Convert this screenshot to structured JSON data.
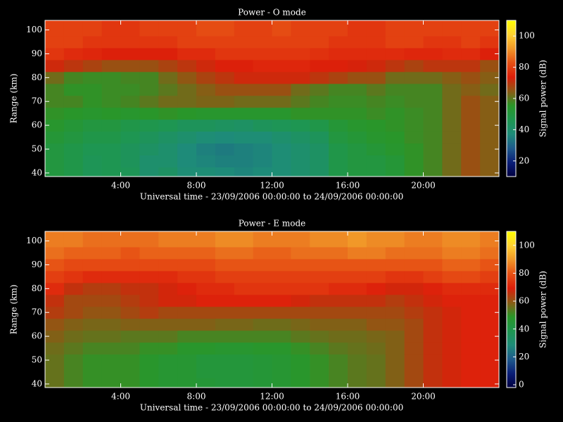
{
  "chart_data": [
    {
      "type": "heatmap",
      "title": "Power - O mode",
      "xlabel": "Universal time - 23/09/2006 00:00:00 to 24/09/2006 00:00:00",
      "ylabel": "Range (km)",
      "colorbar_label": "Signal power (dB)",
      "xlim": [
        0,
        24
      ],
      "ylim": [
        38.5,
        104
      ],
      "xticks": [
        {
          "value": 4,
          "label": "4:00"
        },
        {
          "value": 8,
          "label": "8:00"
        },
        {
          "value": 12,
          "label": "12:00"
        },
        {
          "value": 16,
          "label": "16:00"
        },
        {
          "value": 20,
          "label": "20:00"
        }
      ],
      "yticks": [
        40,
        50,
        60,
        70,
        80,
        90,
        100
      ],
      "clim": [
        10,
        110
      ],
      "cticks": [
        20,
        40,
        60,
        80,
        100
      ],
      "colormap": [
        "#000040",
        "#0a1e78",
        "#1e5a8c",
        "#1e8c78",
        "#1e9650",
        "#2a9628",
        "#8c5a14",
        "#dc1e0a",
        "#e65014",
        "#f09628",
        "#ffd232",
        "#ffff00"
      ],
      "x": [
        0.5,
        1.5,
        2.5,
        3.5,
        4.5,
        5.5,
        6.5,
        7.5,
        8.5,
        9.5,
        10.5,
        11.5,
        12.5,
        13.5,
        14.5,
        15.5,
        16.5,
        17.5,
        18.5,
        19.5,
        20.5,
        21.5,
        22.5,
        23.5
      ],
      "y": [
        40,
        45,
        50,
        55,
        60,
        65,
        70,
        75,
        80,
        85,
        90,
        95,
        100
      ],
      "values": [
        [
          50,
          48,
          45,
          46,
          45,
          40,
          42,
          38,
          38,
          37,
          36,
          37,
          38,
          40,
          42,
          48,
          50,
          50,
          52,
          56,
          58,
          62,
          66,
          64
        ],
        [
          50,
          48,
          45,
          46,
          44,
          40,
          40,
          37,
          36,
          35,
          35,
          36,
          38,
          40,
          42,
          48,
          50,
          50,
          52,
          56,
          58,
          62,
          66,
          64
        ],
        [
          50,
          48,
          46,
          46,
          44,
          42,
          40,
          37,
          35,
          34,
          35,
          36,
          38,
          40,
          42,
          48,
          50,
          52,
          54,
          56,
          58,
          62,
          66,
          64
        ],
        [
          52,
          50,
          48,
          48,
          46,
          44,
          42,
          40,
          38,
          37,
          38,
          38,
          40,
          42,
          44,
          50,
          52,
          54,
          55,
          57,
          58,
          62,
          66,
          64
        ],
        [
          54,
          52,
          50,
          50,
          48,
          47,
          46,
          44,
          44,
          43,
          42,
          44,
          45,
          46,
          48,
          52,
          54,
          55,
          56,
          57,
          58,
          62,
          66,
          64
        ],
        [
          56,
          55,
          54,
          55,
          54,
          55,
          56,
          55,
          54,
          54,
          54,
          54,
          54,
          56,
          56,
          56,
          56,
          57,
          56,
          57,
          58,
          62,
          66,
          64
        ],
        [
          58,
          58,
          56,
          57,
          58,
          60,
          62,
          62,
          63,
          63,
          62,
          62,
          62,
          60,
          58,
          57,
          57,
          58,
          57,
          58,
          58,
          62,
          66,
          64
        ],
        [
          58,
          56,
          56,
          57,
          57,
          58,
          60,
          62,
          64,
          66,
          66,
          66,
          66,
          62,
          60,
          58,
          58,
          60,
          58,
          58,
          58,
          62,
          64,
          62
        ],
        [
          62,
          58,
          57,
          57,
          58,
          58,
          62,
          65,
          68,
          70,
          72,
          72,
          72,
          72,
          70,
          68,
          66,
          66,
          62,
          62,
          62,
          64,
          66,
          64
        ],
        [
          72,
          70,
          68,
          66,
          66,
          66,
          68,
          70,
          72,
          74,
          74,
          75,
          75,
          75,
          74,
          74,
          73,
          72,
          70,
          68,
          70,
          70,
          70,
          66
        ],
        [
          78,
          76,
          75,
          74,
          74,
          74,
          74,
          76,
          76,
          78,
          78,
          78,
          78,
          78,
          77,
          76,
          76,
          76,
          76,
          75,
          75,
          76,
          76,
          74
        ],
        [
          80,
          80,
          78,
          78,
          78,
          78,
          78,
          80,
          80,
          80,
          80,
          80,
          80,
          80,
          80,
          78,
          78,
          78,
          80,
          80,
          78,
          78,
          80,
          78
        ],
        [
          80,
          80,
          80,
          78,
          78,
          80,
          80,
          80,
          82,
          82,
          80,
          80,
          82,
          80,
          80,
          80,
          78,
          78,
          80,
          80,
          80,
          80,
          80,
          80
        ]
      ]
    },
    {
      "type": "heatmap",
      "title": "Power - E mode",
      "xlabel": "Universal time - 23/09/2006 00:00:00 to 24/09/2006 00:00:00",
      "ylabel": "Range (km)",
      "colorbar_label": "Signal power (dB)",
      "xlim": [
        0,
        24
      ],
      "ylim": [
        38.5,
        104
      ],
      "xticks": [
        {
          "value": 4,
          "label": "4:00"
        },
        {
          "value": 8,
          "label": "8:00"
        },
        {
          "value": 12,
          "label": "12:00"
        },
        {
          "value": 16,
          "label": "16:00"
        },
        {
          "value": 20,
          "label": "20:00"
        }
      ],
      "yticks": [
        40,
        50,
        60,
        70,
        80,
        90,
        100
      ],
      "clim": [
        -2,
        110
      ],
      "cticks": [
        0,
        20,
        40,
        60,
        80,
        100
      ],
      "colormap": [
        "#000040",
        "#0a1e78",
        "#1e5a8c",
        "#1e8c78",
        "#1e9650",
        "#2a9628",
        "#8c5a14",
        "#dc1e0a",
        "#e65014",
        "#f09628",
        "#ffd232",
        "#ffff00"
      ],
      "x": [
        0.5,
        1.5,
        2.5,
        3.5,
        4.5,
        5.5,
        6.5,
        7.5,
        8.5,
        9.5,
        10.5,
        11.5,
        12.5,
        13.5,
        14.5,
        15.5,
        16.5,
        17.5,
        18.5,
        19.5,
        20.5,
        21.5,
        22.5,
        23.5
      ],
      "y": [
        40,
        45,
        50,
        55,
        60,
        65,
        70,
        75,
        80,
        85,
        90,
        95,
        100
      ],
      "values": [
        [
          55,
          52,
          50,
          50,
          50,
          48,
          46,
          46,
          45,
          44,
          44,
          45,
          46,
          48,
          50,
          52,
          54,
          55,
          58,
          62,
          66,
          68,
          70,
          70
        ],
        [
          55,
          52,
          50,
          50,
          50,
          48,
          46,
          46,
          44,
          44,
          44,
          45,
          46,
          48,
          50,
          52,
          54,
          55,
          58,
          62,
          66,
          68,
          70,
          70
        ],
        [
          55,
          52,
          50,
          50,
          50,
          48,
          46,
          46,
          44,
          44,
          44,
          45,
          46,
          48,
          50,
          52,
          54,
          55,
          58,
          62,
          66,
          68,
          70,
          70
        ],
        [
          56,
          54,
          52,
          52,
          52,
          50,
          50,
          48,
          48,
          47,
          47,
          48,
          48,
          50,
          52,
          54,
          55,
          56,
          58,
          62,
          66,
          68,
          70,
          70
        ],
        [
          58,
          56,
          55,
          55,
          54,
          54,
          54,
          52,
          52,
          52,
          52,
          52,
          52,
          54,
          55,
          56,
          56,
          57,
          58,
          62,
          66,
          68,
          70,
          70
        ],
        [
          60,
          58,
          57,
          57,
          58,
          58,
          58,
          58,
          58,
          57,
          57,
          56,
          56,
          57,
          58,
          58,
          58,
          60,
          60,
          62,
          66,
          68,
          70,
          70
        ],
        [
          64,
          62,
          60,
          60,
          62,
          64,
          62,
          62,
          62,
          62,
          62,
          62,
          62,
          62,
          62,
          62,
          62,
          62,
          62,
          64,
          66,
          68,
          70,
          70
        ],
        [
          66,
          62,
          62,
          62,
          64,
          66,
          68,
          68,
          70,
          70,
          70,
          70,
          70,
          68,
          66,
          66,
          66,
          66,
          64,
          66,
          68,
          70,
          70,
          70
        ],
        [
          72,
          66,
          64,
          64,
          66,
          66,
          68,
          70,
          72,
          72,
          74,
          74,
          74,
          74,
          74,
          72,
          72,
          70,
          68,
          68,
          70,
          72,
          72,
          72
        ],
        [
          76,
          74,
          72,
          72,
          72,
          72,
          72,
          74,
          74,
          76,
          76,
          76,
          76,
          76,
          76,
          76,
          76,
          76,
          74,
          74,
          76,
          78,
          78,
          76
        ],
        [
          80,
          78,
          78,
          78,
          78,
          78,
          78,
          78,
          78,
          80,
          80,
          80,
          80,
          80,
          80,
          80,
          80,
          80,
          80,
          80,
          80,
          82,
          82,
          80
        ],
        [
          84,
          82,
          82,
          82,
          80,
          82,
          82,
          82,
          82,
          84,
          84,
          82,
          82,
          84,
          84,
          84,
          86,
          86,
          84,
          84,
          84,
          86,
          86,
          84
        ],
        [
          86,
          86,
          84,
          84,
          84,
          84,
          86,
          86,
          86,
          88,
          88,
          86,
          86,
          86,
          88,
          88,
          90,
          88,
          88,
          86,
          86,
          88,
          88,
          86
        ]
      ]
    }
  ]
}
